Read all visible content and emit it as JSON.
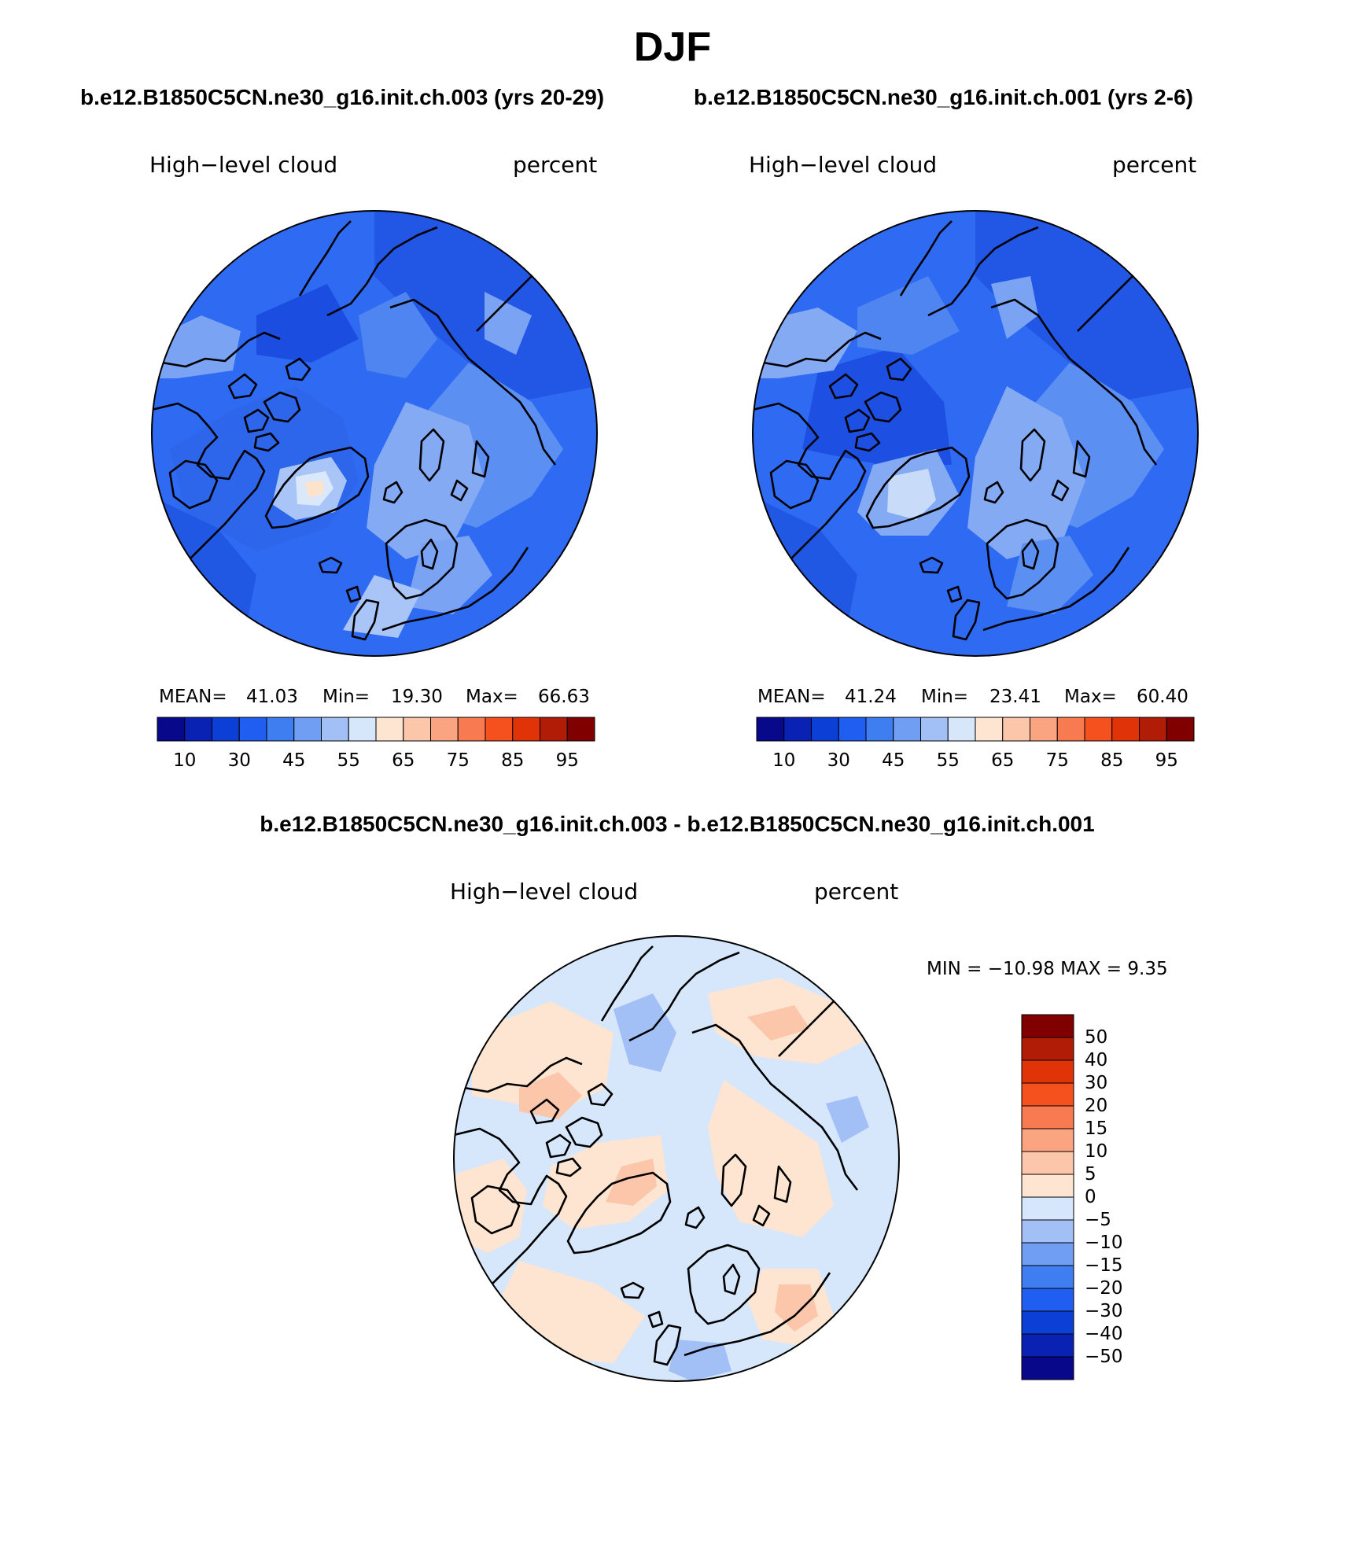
{
  "figure": {
    "season": "DJF",
    "case1_title": "b.e12.B1850C5CN.ne30_g16.init.ch.003 (yrs 20-29)",
    "case2_title": "b.e12.B1850C5CN.ne30_g16.init.ch.001 (yrs 2-6)",
    "diff_title": "b.e12.B1850C5CN.ne30_g16.init.ch.003 - b.e12.B1850C5CN.ne30_g16.init.ch.001"
  },
  "panel1": {
    "variable": "High−level cloud",
    "units": "percent",
    "stats": {
      "mean_label": "MEAN=",
      "mean": "41.03",
      "min_label": "Min=",
      "min": "19.30",
      "max_label": "Max=",
      "max": "66.63"
    }
  },
  "panel2": {
    "variable": "High−level cloud",
    "units": "percent",
    "stats": {
      "mean_label": "MEAN=",
      "mean": "41.24",
      "min_label": "Min=",
      "min": "23.41",
      "max_label": "Max=",
      "max": "60.40"
    }
  },
  "panel3": {
    "variable": "High−level cloud",
    "units": "percent",
    "stats_line": "MIN = −10.98 MAX =    9.35"
  },
  "abs_colorbar": {
    "labels": [
      "10",
      "30",
      "45",
      "55",
      "65",
      "75",
      "85",
      "95"
    ],
    "colors": [
      "#08088a",
      "#0a22b4",
      "#0b3fd6",
      "#1f5ef0",
      "#3f7ef0",
      "#6f9ef2",
      "#a3c0f6",
      "#d6e6fb",
      "#fde5d2",
      "#fcc6aa",
      "#fba482",
      "#f87a50",
      "#f4511f",
      "#e03308",
      "#b01c05",
      "#800000"
    ]
  },
  "diff_colorbar": {
    "labels": [
      "50",
      "40",
      "30",
      "20",
      "15",
      "10",
      "5",
      "0",
      "−5",
      "−10",
      "−15",
      "−20",
      "−30",
      "−40",
      "−50"
    ],
    "colors": [
      "#800000",
      "#b01c05",
      "#e03308",
      "#f4511f",
      "#f87a50",
      "#fba482",
      "#fcc6aa",
      "#fde5d2",
      "#d6e6fb",
      "#a3c0f6",
      "#6f9ef2",
      "#3f7ef0",
      "#1f5ef0",
      "#0b3fd6",
      "#0a22b4",
      "#08088a"
    ]
  }
}
